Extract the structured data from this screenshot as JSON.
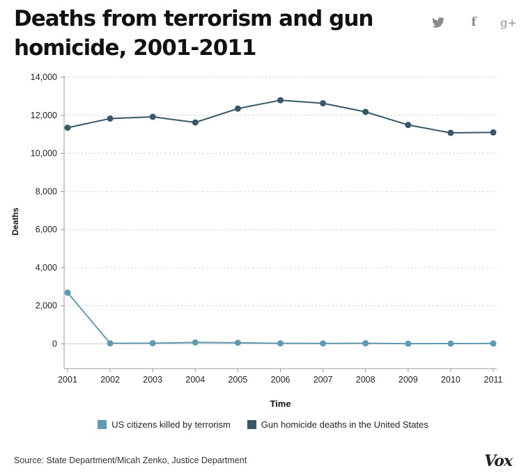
{
  "title": "Deaths from terrorism and gun homicide, 2001-2011",
  "share": {
    "twitter_icon": "twitter-icon",
    "facebook_label": "f",
    "googleplus_label": "g+"
  },
  "chart_data": {
    "type": "line",
    "x": [
      "2001",
      "2002",
      "2003",
      "2004",
      "2005",
      "2006",
      "2007",
      "2008",
      "2009",
      "2010",
      "2011"
    ],
    "series": [
      {
        "name": "US citizens killed by terrorism",
        "color": "#5e9ab0",
        "values": [
          2689,
          27,
          35,
          74,
          56,
          28,
          19,
          30,
          9,
          15,
          17
        ]
      },
      {
        "name": "Gun homicide deaths in the United States",
        "color": "#365868",
        "values": [
          11348,
          11829,
          11920,
          11624,
          12352,
          12791,
          12632,
          12179,
          11493,
          11078,
          11101
        ]
      }
    ],
    "xlabel": "Time",
    "ylabel": "Deaths",
    "ylim": [
      -1300,
      14000
    ],
    "yticks": [
      0,
      2000,
      4000,
      6000,
      8000,
      10000,
      12000,
      14000
    ],
    "ytick_labels": [
      "0",
      "2,000",
      "4,000",
      "6,000",
      "8,000",
      "10,000",
      "12,000",
      "14,000"
    ],
    "grid": true,
    "legend_position": "bottom"
  },
  "source": "Source: State Department/Micah Zenko, Justice Department",
  "logo": "Vox"
}
